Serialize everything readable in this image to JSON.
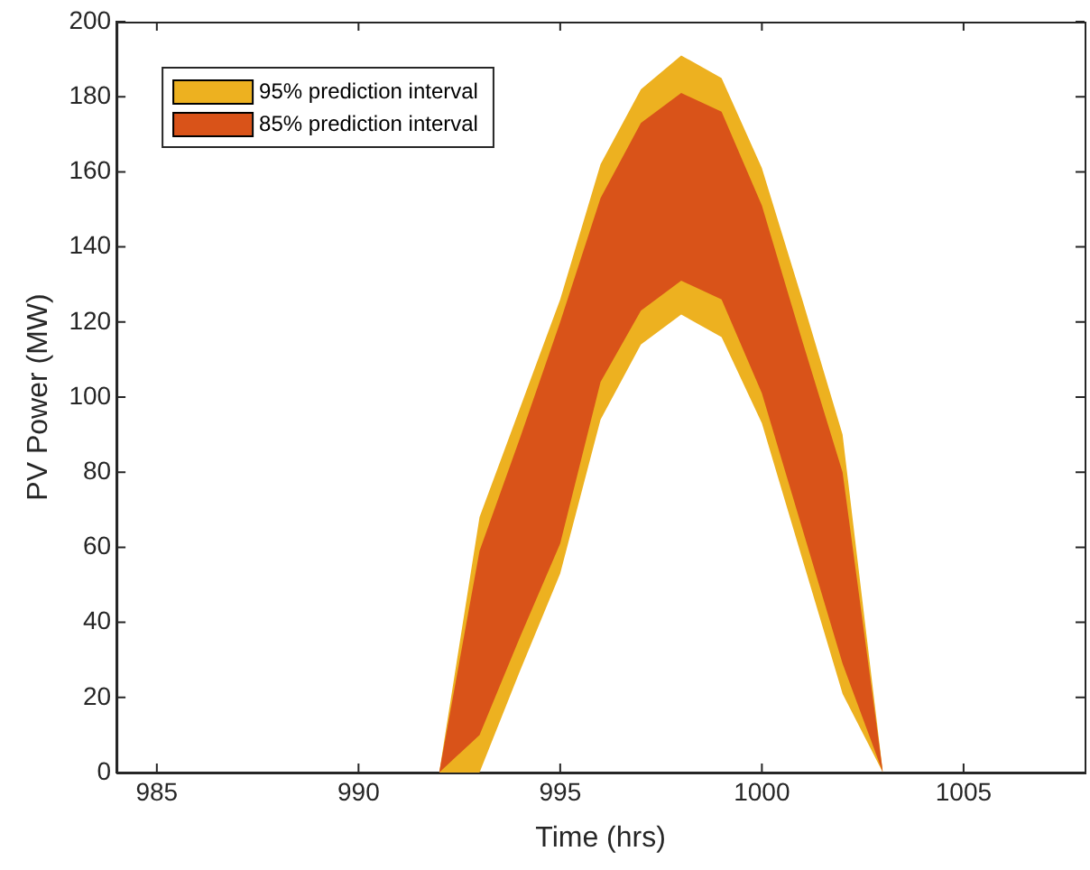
{
  "chart_data": {
    "type": "area",
    "xlabel": "Time (hrs)",
    "ylabel": "PV Power (MW)",
    "x": [
      992,
      993,
      994,
      995,
      996,
      997,
      998,
      999,
      1000,
      1001,
      1002,
      1003
    ],
    "series": [
      {
        "name": "95% prediction interval",
        "color": "#edb120",
        "values": [
          null,
          null,
          null,
          null,
          null,
          null,
          null,
          null,
          null,
          null,
          null,
          null
        ],
        "lower": [
          0,
          0,
          27,
          53,
          94,
          114,
          122,
          116,
          93,
          57,
          21,
          0
        ],
        "upper": [
          0,
          68,
          97,
          126,
          162,
          182,
          191,
          185,
          161,
          126,
          90,
          0
        ]
      },
      {
        "name": "85% prediction interval",
        "color": "#d95319",
        "values": [
          null,
          null,
          null,
          null,
          null,
          null,
          null,
          null,
          null,
          null,
          null,
          null
        ],
        "lower": [
          0,
          10,
          36,
          61,
          104,
          123,
          131,
          126,
          101,
          65,
          29,
          0
        ],
        "upper": [
          0,
          59,
          89,
          120,
          153,
          173,
          181,
          176,
          151,
          115,
          80,
          0
        ]
      }
    ],
    "xlim": [
      984,
      1008
    ],
    "xticks": [
      985,
      990,
      995,
      1000,
      1005
    ],
    "ylim": [
      0,
      200
    ],
    "yticks": [
      0,
      20,
      40,
      60,
      80,
      100,
      120,
      140,
      160,
      180,
      200
    ],
    "grid": false,
    "legend": "top left"
  }
}
